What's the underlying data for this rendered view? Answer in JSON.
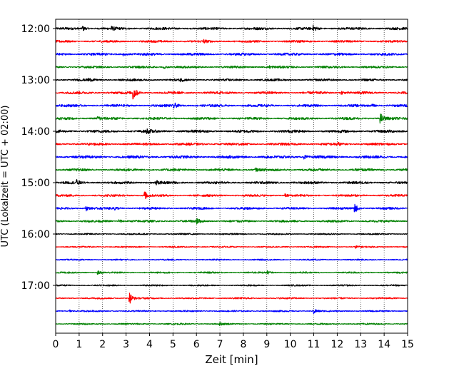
{
  "chart_data": {
    "type": "line",
    "title": "",
    "xlabel": "Zeit  [min]",
    "ylabel": "UTC (Lokalzeit = UTC + 02:00)",
    "xlim": [
      0,
      15
    ],
    "x_ticks": [
      "0",
      "1",
      "2",
      "3",
      "4",
      "5",
      "6",
      "7",
      "8",
      "9",
      "10",
      "11",
      "12",
      "13",
      "14",
      "15"
    ],
    "y_ticks": [
      "12:00",
      "13:00",
      "14:00",
      "15:00",
      "16:00",
      "17:00"
    ],
    "grid": "vertical dotted",
    "trace_interval_min": 15,
    "color_cycle": [
      "#000000",
      "#ff0000",
      "#0000ff",
      "#008000"
    ],
    "series": [
      {
        "start": "12:00",
        "noise": 0.9,
        "events": [
          {
            "t": 1.15,
            "amp": 1.2
          },
          {
            "t": 2.35,
            "amp": 1.0
          },
          {
            "t": 11.0,
            "amp": 1.4
          }
        ]
      },
      {
        "start": "12:15",
        "noise": 0.8,
        "events": [
          {
            "t": 6.3,
            "amp": 0.8
          }
        ]
      },
      {
        "start": "12:30",
        "noise": 0.9,
        "events": [
          {
            "t": 2.9,
            "amp": 0.7
          }
        ]
      },
      {
        "start": "12:45",
        "noise": 0.8,
        "events": [
          {
            "t": 4.6,
            "amp": 0.8
          },
          {
            "t": 9.1,
            "amp": 0.7
          }
        ]
      },
      {
        "start": "13:00",
        "noise": 0.8,
        "events": [
          {
            "t": 1.4,
            "amp": 0.8
          },
          {
            "t": 5.3,
            "amp": 0.7
          }
        ]
      },
      {
        "start": "13:15",
        "noise": 0.9,
        "events": [
          {
            "t": 3.3,
            "amp": 4.2
          },
          {
            "t": 12.2,
            "amp": 0.8
          }
        ]
      },
      {
        "start": "13:30",
        "noise": 0.9,
        "events": [
          {
            "t": 5.05,
            "amp": 1.4
          },
          {
            "t": 13.5,
            "amp": 0.7
          }
        ]
      },
      {
        "start": "13:45",
        "noise": 0.9,
        "events": [
          {
            "t": 1.8,
            "amp": 1.3
          },
          {
            "t": 13.85,
            "amp": 2.6
          }
        ]
      },
      {
        "start": "14:00",
        "noise": 1.0,
        "events": [
          {
            "t": 3.9,
            "amp": 0.9
          }
        ]
      },
      {
        "start": "14:15",
        "noise": 0.9,
        "events": [
          {
            "t": 12.0,
            "amp": 0.8
          }
        ]
      },
      {
        "start": "14:30",
        "noise": 1.0,
        "events": [
          {
            "t": 10.6,
            "amp": 0.9
          }
        ]
      },
      {
        "start": "14:45",
        "noise": 0.9,
        "events": [
          {
            "t": 8.5,
            "amp": 0.9
          }
        ]
      },
      {
        "start": "15:00",
        "noise": 0.9,
        "events": [
          {
            "t": 0.9,
            "amp": 1.1
          },
          {
            "t": 4.3,
            "amp": 0.8
          }
        ]
      },
      {
        "start": "15:15",
        "noise": 0.8,
        "events": [
          {
            "t": 3.8,
            "amp": 2.0
          },
          {
            "t": 9.8,
            "amp": 0.8
          }
        ]
      },
      {
        "start": "15:30",
        "noise": 0.8,
        "events": [
          {
            "t": 1.3,
            "amp": 1.2
          },
          {
            "t": 2.5,
            "amp": 1.0
          },
          {
            "t": 12.75,
            "amp": 2.4
          }
        ]
      },
      {
        "start": "15:45",
        "noise": 0.8,
        "events": [
          {
            "t": 6.0,
            "amp": 1.5
          },
          {
            "t": 2.7,
            "amp": 0.9
          }
        ]
      },
      {
        "start": "16:00",
        "noise": 0.55,
        "events": []
      },
      {
        "start": "16:15",
        "noise": 0.5,
        "events": [
          {
            "t": 12.8,
            "amp": 0.6
          }
        ]
      },
      {
        "start": "16:30",
        "noise": 0.5,
        "events": []
      },
      {
        "start": "16:45",
        "noise": 0.6,
        "events": [
          {
            "t": 1.8,
            "amp": 0.9
          },
          {
            "t": 9.0,
            "amp": 0.9
          }
        ]
      },
      {
        "start": "17:00",
        "noise": 0.55,
        "events": []
      },
      {
        "start": "17:15",
        "noise": 0.6,
        "events": [
          {
            "t": 3.15,
            "amp": 3.2
          }
        ]
      },
      {
        "start": "17:30",
        "noise": 0.55,
        "events": [
          {
            "t": 11.0,
            "amp": 1.6
          },
          {
            "t": 0.6,
            "amp": 0.6
          }
        ]
      },
      {
        "start": "17:45",
        "noise": 0.55,
        "events": [
          {
            "t": 7.0,
            "amp": 0.6
          }
        ]
      }
    ]
  }
}
